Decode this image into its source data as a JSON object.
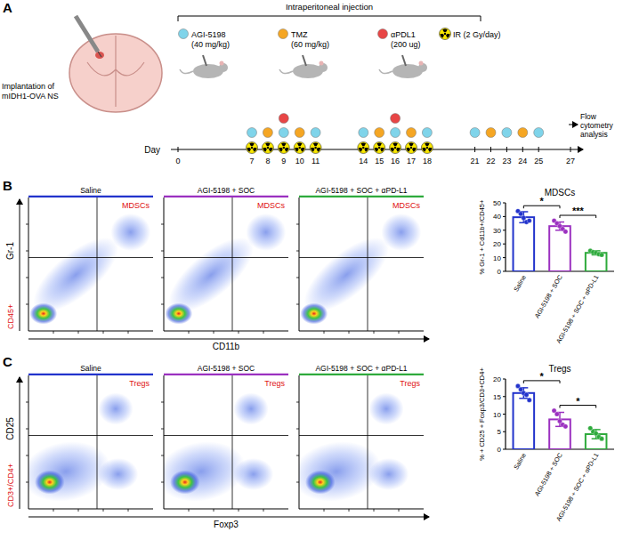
{
  "panel_labels": [
    "A",
    "B",
    "C"
  ],
  "schematic": {
    "implantation": [
      "Implantation of",
      "mIDH1-OVA NS"
    ],
    "route": "Intraperitoneal injection",
    "treatments": [
      {
        "name": "AGI-5198",
        "dose": "(40 mg/kg)",
        "color": "#7fd4ea",
        "marker": "circle",
        "days": [
          7,
          9,
          11,
          14,
          16,
          18,
          21,
          23,
          25
        ]
      },
      {
        "name": "TMZ",
        "dose": "(60 mg/kg)",
        "color": "#f5a623",
        "marker": "circle",
        "days": [
          8,
          10,
          15,
          17,
          22,
          24
        ]
      },
      {
        "name": "αPDL1",
        "dose": "(200 ug)",
        "color": "#e84545",
        "marker": "circle",
        "days": [
          9,
          16
        ]
      },
      {
        "name": "IR (2 Gy/day)",
        "color": "#f7e600",
        "marker": "radiation",
        "days": [
          7,
          8,
          9,
          10,
          11,
          14,
          15,
          16,
          17,
          18
        ]
      }
    ],
    "axis_label": "Day",
    "days": [
      0,
      7,
      8,
      9,
      10,
      11,
      14,
      15,
      16,
      17,
      18,
      21,
      22,
      23,
      24,
      25,
      27
    ],
    "endpoint": [
      "Flow",
      "cytometry",
      "analysis"
    ]
  },
  "flow_panels": [
    {
      "gate": "MDSCs",
      "parent": "CD45+",
      "x_label": "CD11b",
      "y_label": "Gr-1",
      "groups": [
        "Saline",
        "AGI-5198 + SOC",
        "AGI-5198 + SOC + αPD-L1"
      ],
      "colors": [
        "#2233cc",
        "#9b30c0",
        "#2eaa3c"
      ]
    },
    {
      "gate": "Tregs",
      "parent": "CD3+/CD4+",
      "x_label": "Foxp3",
      "y_label": "CD25",
      "groups": [
        "Saline",
        "AGI-5198 + SOC",
        "AGI-5198 + SOC + αPD-L1"
      ],
      "colors": [
        "#2233cc",
        "#9b30c0",
        "#2eaa3c"
      ]
    }
  ],
  "chart_data": [
    {
      "type": "bar",
      "title": "MDSCs",
      "y_label": "% Gr-1 + Cd11b+/CD45+",
      "categories": [
        "Saline",
        "AGI-5198 + SOC",
        "AGI-5198 + SOC + αPD-L1"
      ],
      "values": [
        39.5,
        33,
        13.5
      ],
      "error": [
        4,
        3,
        1.5
      ],
      "points": [
        [
          44,
          42,
          39,
          36,
          37
        ],
        [
          37,
          35,
          33,
          31,
          29
        ],
        [
          15,
          14,
          13.5,
          12.5,
          12
        ]
      ],
      "colors": [
        "#2233cc",
        "#9b30c0",
        "#2eaa3c"
      ],
      "ylim": [
        0,
        50
      ],
      "yticks": [
        0,
        10,
        20,
        30,
        40,
        50
      ],
      "grid": false,
      "significance": [
        {
          "text": "*",
          "between": [
            0,
            1
          ]
        },
        {
          "text": "***",
          "between": [
            1,
            2
          ]
        }
      ]
    },
    {
      "type": "bar",
      "title": "Tregs",
      "y_label": "% + CD25 + Foxp3/CD3+CD4+",
      "categories": [
        "Saline",
        "AGI-5198 + SOC",
        "AGI-5198 + SOC + αPD-L1"
      ],
      "values": [
        16,
        8.5,
        4.3
      ],
      "error": [
        1.5,
        2,
        1.3
      ],
      "points": [
        [
          18,
          17,
          16,
          15.5,
          14
        ],
        [
          11,
          10,
          8,
          7,
          6.5
        ],
        [
          6,
          5,
          4.5,
          3.5,
          3
        ]
      ],
      "colors": [
        "#2233cc",
        "#9b30c0",
        "#2eaa3c"
      ],
      "ylim": [
        0,
        20
      ],
      "yticks": [
        0,
        5,
        10,
        15,
        20
      ],
      "grid": false,
      "significance": [
        {
          "text": "*",
          "between": [
            0,
            1
          ]
        },
        {
          "text": "*",
          "between": [
            1,
            2
          ]
        }
      ]
    }
  ]
}
